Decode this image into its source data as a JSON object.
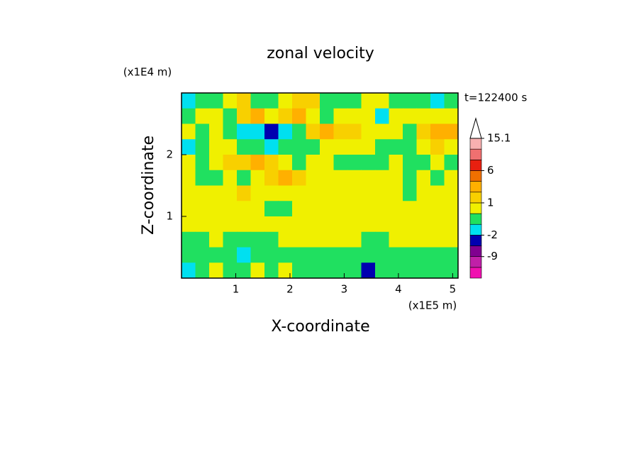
{
  "chart_data": {
    "type": "contour",
    "title": "zonal velocity",
    "x_label": "X-coordinate",
    "y_label": "Z-coordinate",
    "x_unit": "(x1E5 m)",
    "y_unit": "(x1E4 m)",
    "annotation": "t=122400 s",
    "xlim": [
      0,
      5.1
    ],
    "ylim": [
      0,
      3
    ],
    "xticks": [
      1,
      2,
      3,
      4,
      5
    ],
    "yticks": [
      1,
      2
    ],
    "z": [
      [
        -1.5,
        -0.5,
        -0.5,
        0.5,
        1.5,
        -0.5,
        -0.5,
        0.5,
        1.5,
        1.5,
        -0.5,
        -0.5,
        -0.5,
        0.5,
        0.5,
        -0.5,
        -0.5,
        -0.5,
        -1.5,
        -0.5
      ],
      [
        -0.5,
        0.5,
        0.5,
        -0.5,
        1.5,
        3,
        0.5,
        1.5,
        3,
        0.5,
        -0.5,
        0.5,
        0.5,
        0.5,
        -1.5,
        0.5,
        0.5,
        0.5,
        0.5,
        0.5
      ],
      [
        0.5,
        -0.5,
        0.5,
        -0.5,
        -1.5,
        -1.5,
        -4,
        -1.5,
        -0.5,
        1.5,
        3,
        1.5,
        1.5,
        0.5,
        0.5,
        0.5,
        -0.5,
        1.5,
        3,
        3
      ],
      [
        -1.5,
        -0.5,
        0.5,
        0.5,
        -0.5,
        -0.5,
        -1.5,
        -0.5,
        -0.5,
        -0.5,
        0.5,
        0.5,
        0.5,
        0.5,
        -0.5,
        -0.5,
        -0.5,
        0.5,
        1.5,
        0.5
      ],
      [
        0.5,
        -0.5,
        0.5,
        1.5,
        1.5,
        3,
        1.5,
        0.5,
        -0.5,
        0.5,
        0.5,
        -0.5,
        -0.5,
        -0.5,
        -0.5,
        0.5,
        -0.5,
        -0.5,
        0.5,
        -0.5
      ],
      [
        0.5,
        -0.5,
        -0.5,
        0.5,
        -0.5,
        0.5,
        1.5,
        3,
        1.5,
        0.5,
        0.5,
        0.5,
        0.5,
        0.5,
        0.5,
        0.5,
        -0.5,
        0.5,
        -0.5,
        0.5
      ],
      [
        0.5,
        0.5,
        0.5,
        0.5,
        1.5,
        0.5,
        0.5,
        0.5,
        0.5,
        0.5,
        0.5,
        0.5,
        0.5,
        0.5,
        0.5,
        0.5,
        -0.5,
        0.5,
        0.5,
        0.5
      ],
      [
        0.5,
        0.5,
        0.5,
        0.5,
        0.5,
        0.5,
        -0.5,
        -0.5,
        0.5,
        0.5,
        0.5,
        0.5,
        0.5,
        0.5,
        0.5,
        0.5,
        0.5,
        0.5,
        0.5,
        0.5
      ],
      [
        0.5,
        0.5,
        0.5,
        0.5,
        0.5,
        0.5,
        0.5,
        0.5,
        0.5,
        0.5,
        0.5,
        0.5,
        0.5,
        0.5,
        0.5,
        0.5,
        0.5,
        0.5,
        0.5,
        0.5
      ],
      [
        -0.5,
        -0.5,
        0.5,
        -0.5,
        -0.5,
        -0.5,
        -0.5,
        0.5,
        0.5,
        0.5,
        0.5,
        0.5,
        0.5,
        -0.5,
        -0.5,
        0.5,
        0.5,
        0.5,
        0.5,
        0.5
      ],
      [
        -0.5,
        -0.5,
        -0.5,
        -0.5,
        -1.5,
        -0.5,
        -0.5,
        -0.5,
        -0.5,
        -0.5,
        -0.5,
        -0.5,
        -0.5,
        -0.5,
        -0.5,
        -0.5,
        -0.5,
        -0.5,
        -0.5,
        -0.5
      ],
      [
        -1.5,
        -0.5,
        0.5,
        -0.5,
        -0.5,
        0.5,
        -0.5,
        0.5,
        -0.5,
        -0.5,
        -0.5,
        -0.5,
        -0.5,
        -4,
        -0.5,
        -0.5,
        -0.5,
        -0.5,
        -0.5,
        -0.5
      ]
    ],
    "colorbar": {
      "bounds": [
        -15,
        -12,
        -9,
        -6,
        -2,
        -1,
        0,
        1,
        2,
        4,
        6,
        9,
        12,
        15.1
      ],
      "colors": [
        "#f010b0",
        "#c020a8",
        "#800090",
        "#0000b0",
        "#00e0f0",
        "#20e060",
        "#f0f000",
        "#f8d000",
        "#ffb000",
        "#f07000",
        "#e82010",
        "#f07070",
        "#f8b0b0"
      ],
      "ticks": [
        -9,
        -2,
        1,
        6,
        15.1
      ]
    }
  }
}
